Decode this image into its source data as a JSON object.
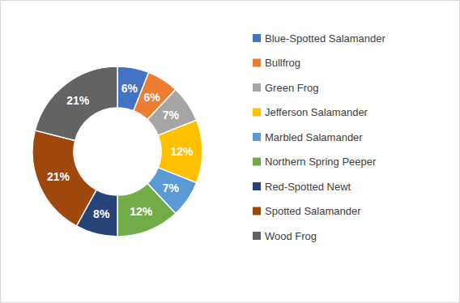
{
  "chart_data": {
    "type": "donut",
    "categories": [
      "Blue-Spotted Salamander",
      "Bullfrog",
      "Green Frog",
      "Jefferson Salamander",
      "Marbled Salamander",
      "Northern Spring Peeper",
      "Red-Spotted Newt",
      "Spotted Salamander",
      "Wood Frog"
    ],
    "values": [
      6,
      6,
      7,
      12,
      7,
      12,
      8,
      21,
      21
    ],
    "value_labels": [
      "6%",
      "6%",
      "7%",
      "12%",
      "7%",
      "12%",
      "8%",
      "21%",
      "21%"
    ],
    "colors": [
      "#4472c4",
      "#ed7d31",
      "#a5a5a5",
      "#ffc000",
      "#5b9bd5",
      "#70ad47",
      "#264478",
      "#9e480e",
      "#636363"
    ],
    "data_labels": true,
    "legend": "right"
  }
}
